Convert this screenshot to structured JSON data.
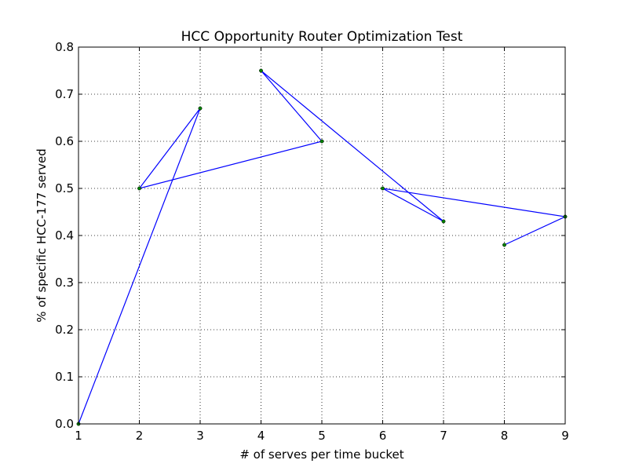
{
  "chart_data": {
    "type": "line",
    "title": "HCC Opportunity Router Optimization Test",
    "xlabel": "# of serves per time bucket",
    "ylabel": "% of specific HCC-177 served",
    "xlim": [
      1,
      9
    ],
    "ylim": [
      0.0,
      0.8
    ],
    "xticks": [
      1,
      2,
      3,
      4,
      5,
      6,
      7,
      8,
      9
    ],
    "xtick_labels": [
      "1",
      "2",
      "3",
      "4",
      "5",
      "6",
      "7",
      "8",
      "9"
    ],
    "yticks": [
      0.0,
      0.1,
      0.2,
      0.3,
      0.4,
      0.5,
      0.6,
      0.7,
      0.8
    ],
    "ytick_labels": [
      "0.0",
      "0.1",
      "0.2",
      "0.3",
      "0.4",
      "0.5",
      "0.6",
      "0.7",
      "0.8"
    ],
    "grid": true,
    "series": [
      {
        "x": [
          1,
          3,
          2,
          5,
          4,
          7,
          6,
          9,
          8
        ],
        "y": [
          0.0,
          0.67,
          0.5,
          0.6,
          0.75,
          0.43,
          0.5,
          0.44,
          0.38
        ],
        "line_color": "#0000ff",
        "marker_color": "#008000"
      }
    ]
  }
}
